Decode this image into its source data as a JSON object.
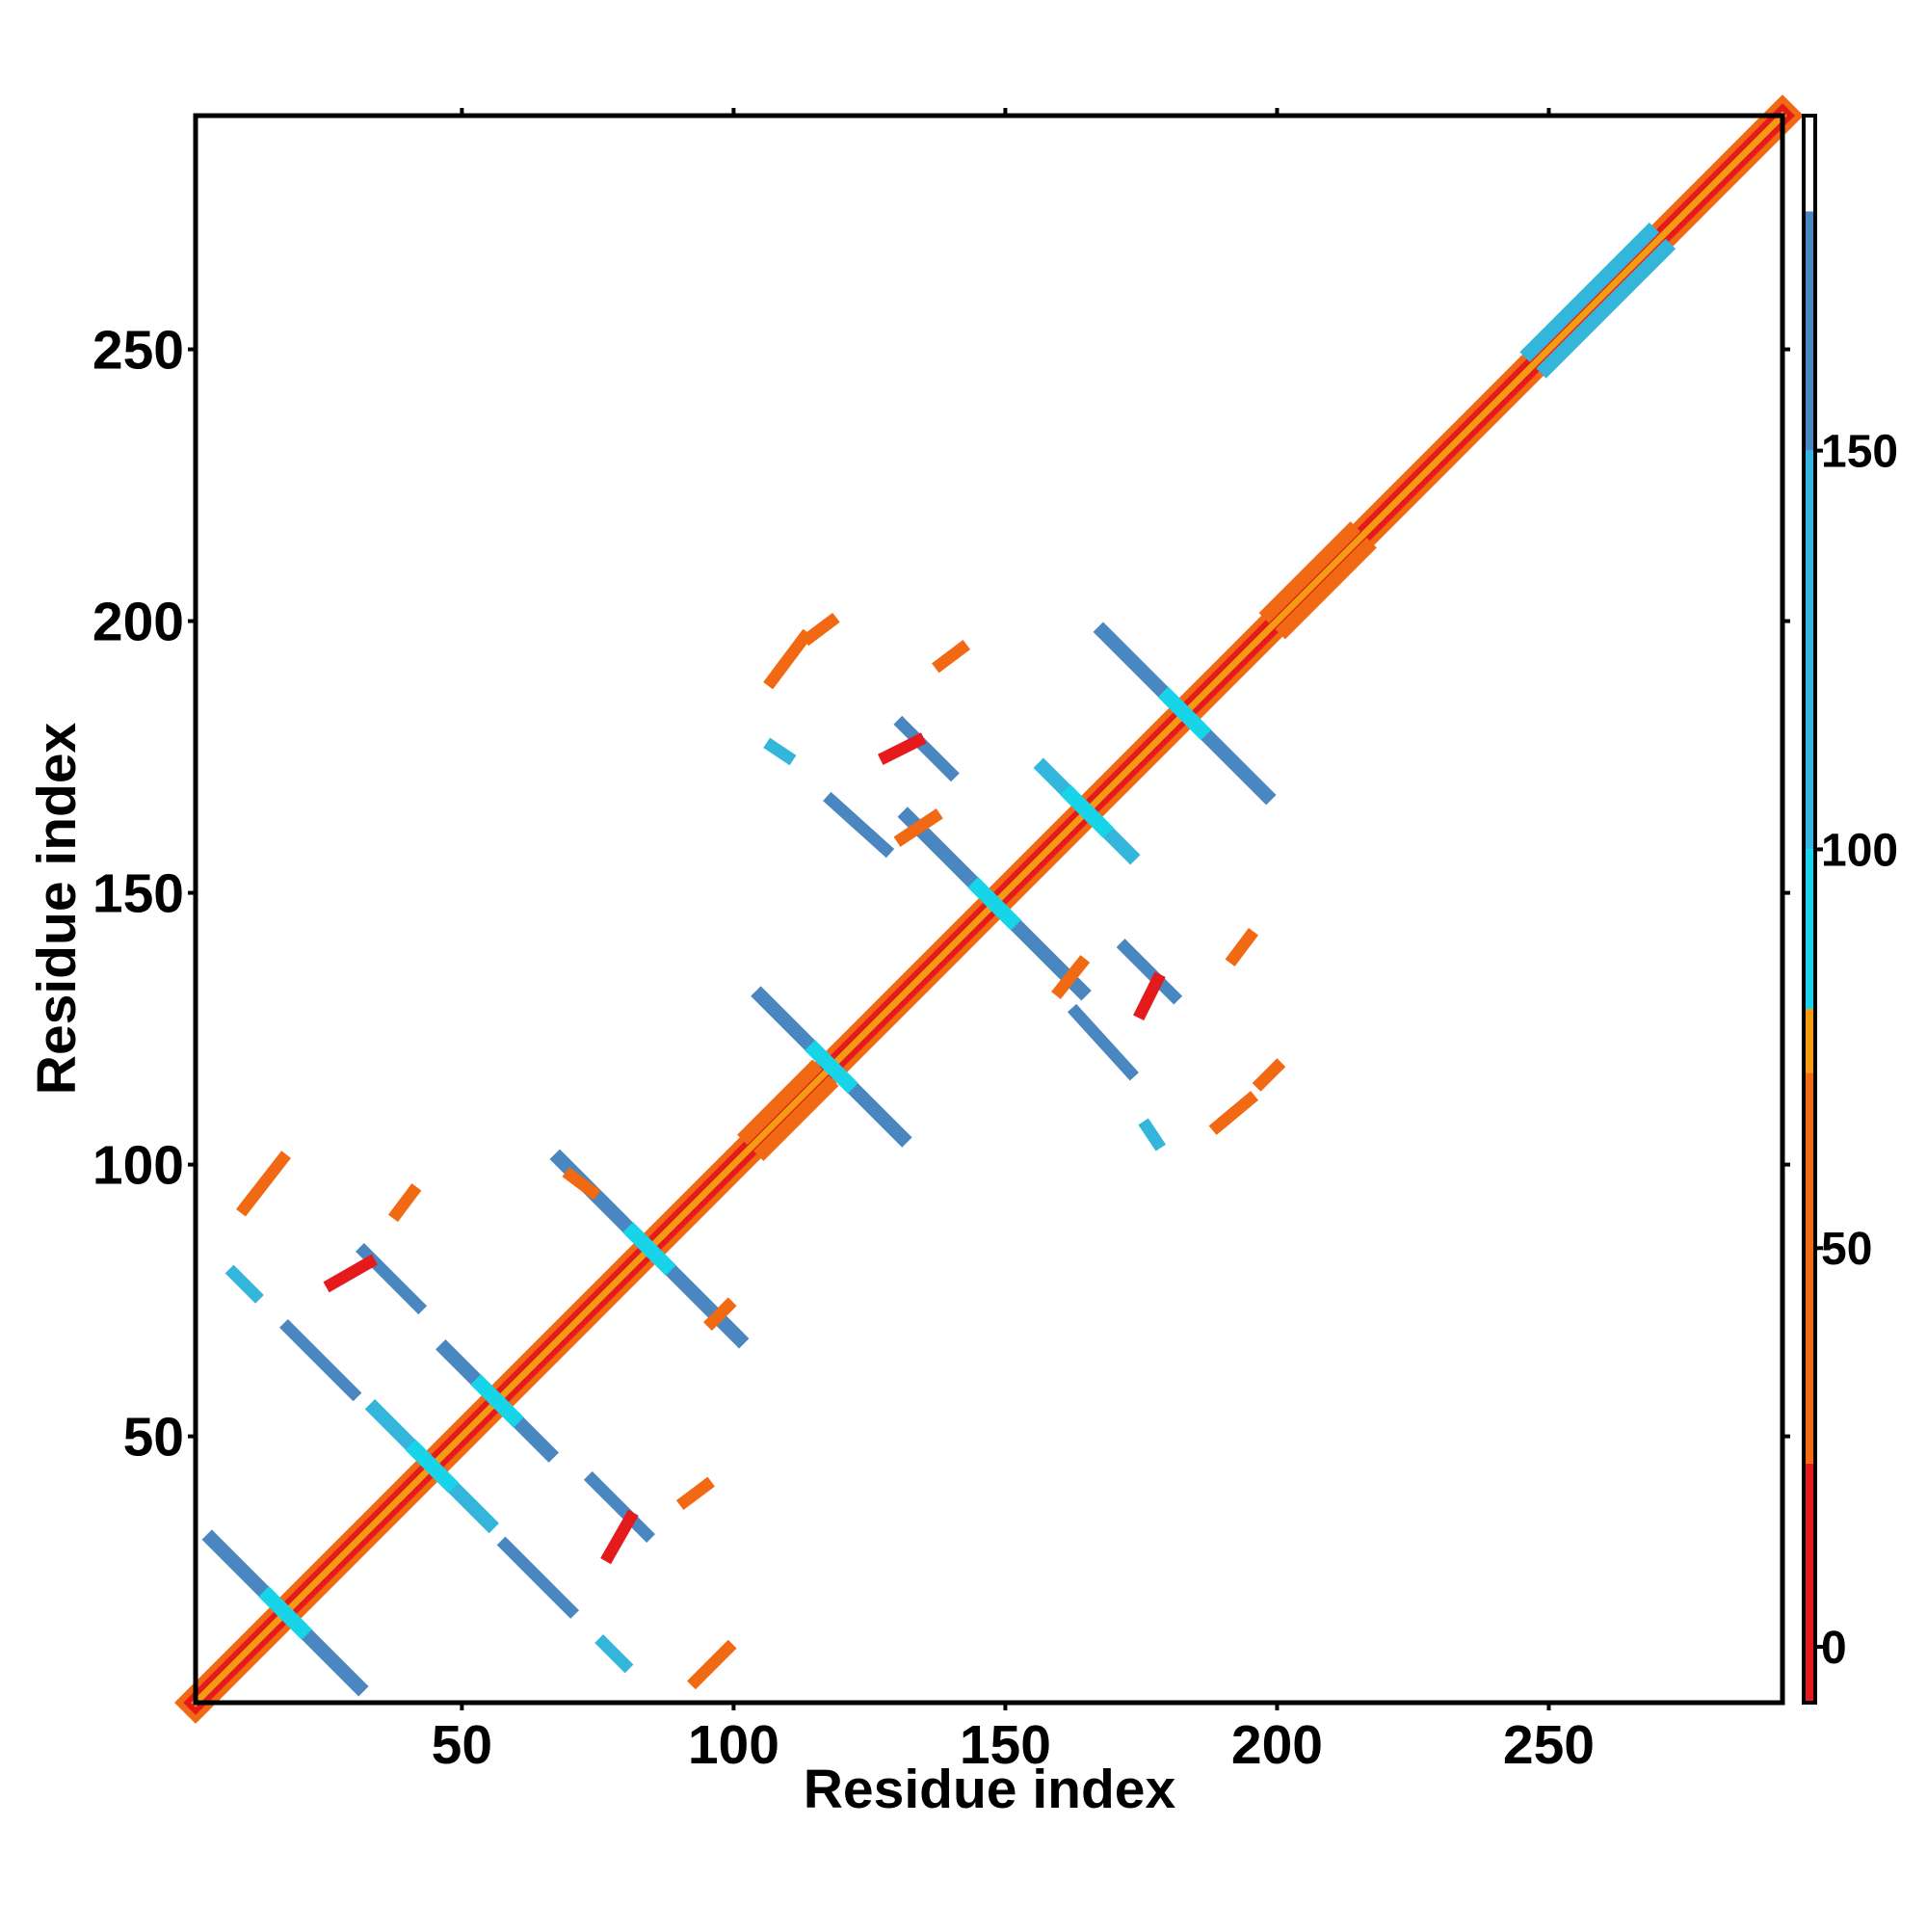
{
  "chart_data": {
    "type": "heatmap",
    "subtype": "contact-map",
    "title": "",
    "xlabel": "Residue index",
    "ylabel": "Residue index",
    "xlim": [
      1,
      293
    ],
    "ylim": [
      1,
      293
    ],
    "xticks": [
      50,
      100,
      150,
      200,
      250
    ],
    "yticks": [
      50,
      100,
      150,
      200,
      250
    ],
    "grid": false,
    "colorbar": {
      "ticks": [
        0,
        50,
        100,
        150
      ],
      "range": [
        -7,
        192
      ],
      "bands": [
        {
          "from": -7,
          "to": 23,
          "color": "#e41a1c"
        },
        {
          "from": 23,
          "to": 72,
          "color": "#f16913"
        },
        {
          "from": 72,
          "to": 80,
          "color": "#f39c12"
        },
        {
          "from": 80,
          "to": 100,
          "color": "#17d4e8"
        },
        {
          "from": 100,
          "to": 150,
          "color": "#34b6dc"
        },
        {
          "from": 150,
          "to": 180,
          "color": "#4a86bf"
        },
        {
          "from": 180,
          "to": 192,
          "color": "#ffffff"
        }
      ]
    },
    "diagonal": {
      "from": 1,
      "to": 293,
      "value": 10
    },
    "features": [
      {
        "kind": "parallel",
        "x1": 104,
        "y1": 104,
        "x2": 116,
        "y2": 116,
        "value": 40
      },
      {
        "kind": "parallel",
        "x1": 200,
        "y1": 200,
        "x2": 215,
        "y2": 215,
        "value": 40
      },
      {
        "kind": "parallel",
        "x1": 248,
        "y1": 248,
        "x2": 270,
        "y2": 270,
        "value": 120
      },
      {
        "kind": "anti",
        "x1": 4,
        "y1": 31,
        "x2": 31,
        "y2": 4,
        "value": 160
      },
      {
        "kind": "anti",
        "x1": 47,
        "y1": 66,
        "x2": 66,
        "y2": 47,
        "value": 160
      },
      {
        "kind": "anti",
        "x1": 68,
        "y1": 101,
        "x2": 101,
        "y2": 68,
        "value": 155
      },
      {
        "kind": "anti",
        "x1": 105,
        "y1": 131,
        "x2": 131,
        "y2": 105,
        "value": 160
      },
      {
        "kind": "anti",
        "x1": 132,
        "y1": 164,
        "x2": 164,
        "y2": 132,
        "value": 160
      },
      {
        "kind": "anti",
        "x1": 168,
        "y1": 198,
        "x2": 198,
        "y2": 168,
        "value": 155
      },
      {
        "kind": "anti",
        "x1": 34,
        "y1": 55,
        "x2": 55,
        "y2": 34,
        "value": 130
      },
      {
        "kind": "anti",
        "x1": 173,
        "y1": 157,
        "x2": 157,
        "y2": 173,
        "value": 130
      },
      {
        "kind": "line",
        "x1": 58,
        "y1": 30,
        "x2": 70,
        "y2": 18,
        "value": 160
      },
      {
        "kind": "line",
        "x1": 74,
        "y1": 42,
        "x2": 84,
        "y2": 32,
        "value": 160
      },
      {
        "kind": "line",
        "x1": 30,
        "y1": 58,
        "x2": 18,
        "y2": 70,
        "value": 160
      },
      {
        "kind": "line",
        "x1": 42,
        "y1": 74,
        "x2": 32,
        "y2": 84,
        "value": 160
      },
      {
        "kind": "line",
        "x1": 163,
        "y1": 128,
        "x2": 173,
        "y2": 117,
        "value": 160
      },
      {
        "kind": "line",
        "x1": 172,
        "y1": 140,
        "x2": 181,
        "y2": 131,
        "value": 160
      },
      {
        "kind": "line",
        "x1": 118,
        "y1": 167,
        "x2": 128,
        "y2": 158,
        "value": 160
      },
      {
        "kind": "line",
        "x1": 131,
        "y1": 181,
        "x2": 140,
        "y2": 172,
        "value": 160
      },
      {
        "kind": "line",
        "x1": 93,
        "y1": 5,
        "x2": 99,
        "y2": 11,
        "value": 30
      },
      {
        "kind": "line",
        "x1": 10,
        "y1": 92,
        "x2": 17,
        "y2": 101,
        "value": 30
      },
      {
        "kind": "line",
        "x1": 26,
        "y1": 78,
        "x2": 33,
        "y2": 82,
        "value": 20
      },
      {
        "kind": "line",
        "x1": 77,
        "y1": 28,
        "x2": 81,
        "y2": 35,
        "value": 20
      },
      {
        "kind": "line",
        "x1": 189,
        "y1": 107,
        "x2": 195,
        "y2": 112,
        "value": 30
      },
      {
        "kind": "line",
        "x1": 107,
        "y1": 189,
        "x2": 113,
        "y2": 197,
        "value": 30
      },
      {
        "kind": "line",
        "x1": 128,
        "y1": 175,
        "x2": 134,
        "y2": 178,
        "value": 20
      },
      {
        "kind": "line",
        "x1": 175,
        "y1": 128,
        "x2": 178,
        "y2": 134,
        "value": 20
      },
      {
        "kind": "line",
        "x1": 197,
        "y1": 115,
        "x2": 200,
        "y2": 118,
        "value": 40
      },
      {
        "kind": "line",
        "x1": 114,
        "y1": 197,
        "x2": 118,
        "y2": 200,
        "value": 40
      },
      {
        "kind": "line",
        "x1": 160,
        "y1": 132,
        "x2": 164,
        "y2": 137,
        "value": 40
      },
      {
        "kind": "line",
        "x1": 131,
        "y1": 160,
        "x2": 137,
        "y2": 164,
        "value": 40
      },
      {
        "kind": "line",
        "x1": 8,
        "y1": 80,
        "x2": 12,
        "y2": 76,
        "value": 110
      },
      {
        "kind": "line",
        "x1": 80,
        "y1": 8,
        "x2": 76,
        "y2": 12,
        "value": 110
      },
      {
        "kind": "line",
        "x1": 107,
        "y1": 177,
        "x2": 110,
        "y2": 175,
        "value": 110
      },
      {
        "kind": "line",
        "x1": 176,
        "y1": 107,
        "x2": 178,
        "y2": 104,
        "value": 110
      },
      {
        "kind": "line",
        "x1": 70,
        "y1": 98,
        "x2": 74,
        "y2": 95,
        "value": 60
      },
      {
        "kind": "line",
        "x1": 96,
        "y1": 71,
        "x2": 99,
        "y2": 74,
        "value": 60
      },
      {
        "kind": "line",
        "x1": 91,
        "y1": 38,
        "x2": 95,
        "y2": 41,
        "value": 60
      },
      {
        "kind": "line",
        "x1": 38,
        "y1": 91,
        "x2": 41,
        "y2": 95,
        "value": 60
      },
      {
        "kind": "line",
        "x1": 192,
        "y1": 138,
        "x2": 195,
        "y2": 142,
        "value": 60
      },
      {
        "kind": "line",
        "x1": 138,
        "y1": 192,
        "x2": 142,
        "y2": 195,
        "value": 60
      }
    ]
  }
}
